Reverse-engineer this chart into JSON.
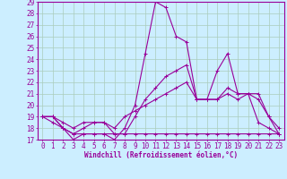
{
  "xlabel": "Windchill (Refroidissement éolien,°C)",
  "xlim": [
    -0.5,
    23.5
  ],
  "ylim": [
    17,
    29
  ],
  "xticks": [
    0,
    1,
    2,
    3,
    4,
    5,
    6,
    7,
    8,
    9,
    10,
    11,
    12,
    13,
    14,
    15,
    16,
    17,
    18,
    19,
    20,
    21,
    22,
    23
  ],
  "yticks": [
    17,
    18,
    19,
    20,
    21,
    22,
    23,
    24,
    25,
    26,
    27,
    28,
    29
  ],
  "bg_color": "#cceeff",
  "line_color": "#990099",
  "grid_color": "#aaccbb",
  "series": {
    "line1": [
      19.0,
      19.0,
      18.0,
      17.0,
      17.5,
      17.5,
      17.5,
      17.0,
      18.0,
      20.0,
      24.5,
      29.0,
      28.5,
      26.0,
      25.5,
      20.5,
      20.5,
      23.0,
      24.5,
      21.0,
      21.0,
      18.5,
      18.0,
      17.5
    ],
    "line2": [
      19.0,
      19.0,
      18.0,
      17.5,
      18.0,
      18.5,
      18.5,
      17.5,
      17.5,
      19.0,
      20.5,
      21.5,
      22.5,
      23.0,
      23.5,
      20.5,
      20.5,
      20.5,
      21.5,
      21.0,
      21.0,
      21.0,
      19.0,
      17.5
    ],
    "line3": [
      19.0,
      19.0,
      18.5,
      18.0,
      18.5,
      18.5,
      18.5,
      18.0,
      19.0,
      19.5,
      20.0,
      20.5,
      21.0,
      21.5,
      22.0,
      20.5,
      20.5,
      20.5,
      21.0,
      20.5,
      21.0,
      20.5,
      19.0,
      18.0
    ],
    "line4": [
      19.0,
      18.5,
      18.0,
      17.5,
      17.5,
      17.5,
      17.5,
      17.5,
      17.5,
      17.5,
      17.5,
      17.5,
      17.5,
      17.5,
      17.5,
      17.5,
      17.5,
      17.5,
      17.5,
      17.5,
      17.5,
      17.5,
      17.5,
      17.5
    ]
  },
  "tick_fontsize": 5.5,
  "xlabel_fontsize": 5.5
}
